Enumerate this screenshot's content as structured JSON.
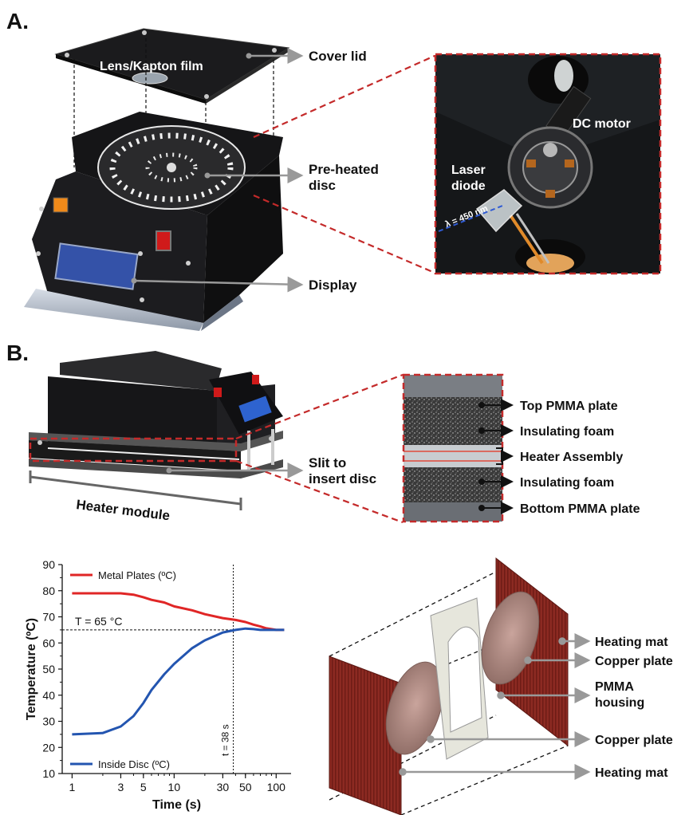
{
  "panel_a": {
    "letter": "A.",
    "labels": {
      "lens": "Lens/Kapton film",
      "cover_lid": "Cover lid",
      "preheated_line1": "Pre-heated",
      "preheated_line2": "disc",
      "display": "Display",
      "dc_motor": "DC motor",
      "laser_line1": "Laser",
      "laser_line2": "diode",
      "wavelength": "λ = 450 nm"
    }
  },
  "panel_b": {
    "letter": "B.",
    "labels": {
      "slit_line1": "Slit to",
      "slit_line2": "insert disc",
      "heater_module": "Heater module",
      "top_pmma": "Top PMMA plate",
      "foam_top": "Insulating foam",
      "heater_assembly": "Heater Assembly",
      "foam_bottom": "Insulating foam",
      "bottom_pmma": "Bottom PMMA plate"
    }
  },
  "exploded": {
    "heating_mat_top": "Heating mat",
    "copper_plate_top": "Copper plate",
    "pmma_line1": "PMMA",
    "pmma_line2": "housing",
    "copper_plate_bottom": "Copper plate",
    "heating_mat_bottom": "Heating mat"
  },
  "chart_data": {
    "type": "line",
    "xscale": "log",
    "xlabel": "Time (s)",
    "ylabel": "Temperature (ºC)",
    "xlim": [
      0.8,
      140
    ],
    "ylim": [
      10,
      90
    ],
    "xticks": [
      1,
      3,
      5,
      10,
      30,
      50,
      100
    ],
    "xtick_labels": [
      "1",
      "3",
      "5",
      "10",
      "30",
      "50",
      "100"
    ],
    "yticks": [
      10,
      20,
      30,
      40,
      50,
      60,
      70,
      80,
      90
    ],
    "ytick_labels": [
      "10",
      "20",
      "30",
      "40",
      "50",
      "60",
      "70",
      "80",
      "90"
    ],
    "series": [
      {
        "name": "Metal Plates (ºC)",
        "color": "#e02626",
        "x": [
          1,
          2,
          3,
          4,
          5,
          6,
          8,
          10,
          15,
          20,
          30,
          40,
          50,
          60,
          70,
          80,
          90,
          100,
          120
        ],
        "y": [
          79,
          79,
          79,
          78.5,
          77.5,
          76.5,
          75.5,
          74,
          72.5,
          71,
          69.5,
          68.8,
          68,
          67,
          66.3,
          65.6,
          65.3,
          65,
          65
        ]
      },
      {
        "name": "Inside Disc (ºC)",
        "color": "#2355b0",
        "x": [
          1,
          2,
          3,
          4,
          5,
          6,
          8,
          10,
          15,
          20,
          30,
          40,
          50,
          60,
          70,
          80,
          90,
          100,
          120
        ],
        "y": [
          25,
          25.5,
          28,
          32,
          37,
          42,
          48,
          52,
          58,
          61,
          64,
          65,
          65.5,
          65.3,
          65,
          65,
          65,
          65,
          65
        ]
      }
    ],
    "annotations": {
      "threshold_label": "T = 65 °C",
      "threshold_value": 65,
      "time_label": "t = 38 s",
      "time_value": 38
    },
    "legend_placement": "top-left / bottom-left",
    "grid": false
  }
}
